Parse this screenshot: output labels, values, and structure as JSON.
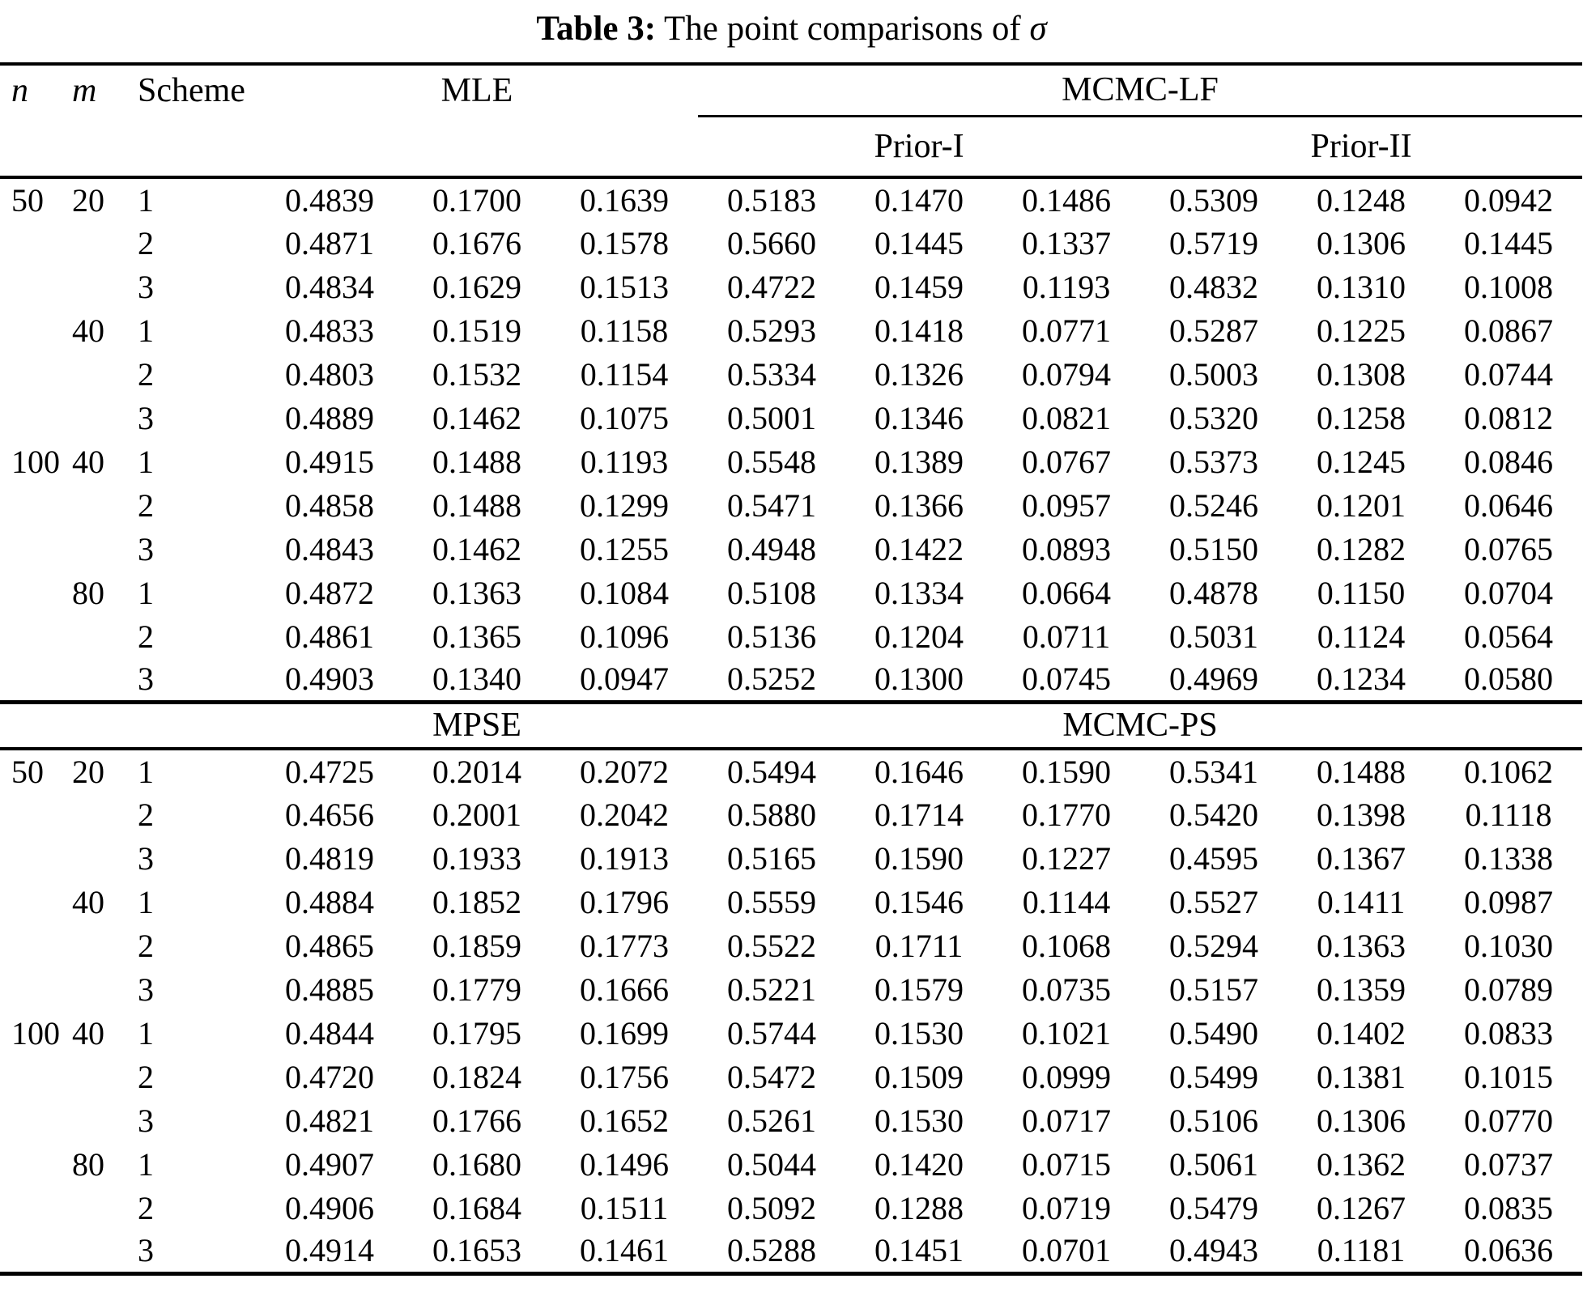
{
  "title": {
    "label": "Table 3:",
    "text": " The point comparisons of ",
    "symbol": "σ"
  },
  "colors": {
    "text": "#000000",
    "background": "#ffffff"
  },
  "header": {
    "col_n": "n",
    "col_m": "m",
    "col_scheme": "Scheme",
    "section1_left": "MLE",
    "section1_right": "MCMC-LF",
    "prior1": "Prior-I",
    "prior2": "Prior-II",
    "section2_left": "MPSE",
    "section2_right": "MCMC-PS"
  },
  "section1": {
    "rows": [
      {
        "n": "50",
        "m": "20",
        "scheme": "1",
        "values": [
          "0.4839",
          "0.1700",
          "0.1639",
          "0.5183",
          "0.1470",
          "0.1486",
          "0.5309",
          "0.1248",
          "0.0942"
        ]
      },
      {
        "n": "",
        "m": "",
        "scheme": "2",
        "values": [
          "0.4871",
          "0.1676",
          "0.1578",
          "0.5660",
          "0.1445",
          "0.1337",
          "0.5719",
          "0.1306",
          "0.1445"
        ]
      },
      {
        "n": "",
        "m": "",
        "scheme": "3",
        "values": [
          "0.4834",
          "0.1629",
          "0.1513",
          "0.4722",
          "0.1459",
          "0.1193",
          "0.4832",
          "0.1310",
          "0.1008"
        ]
      },
      {
        "n": "",
        "m": "40",
        "scheme": "1",
        "values": [
          "0.4833",
          "0.1519",
          "0.1158",
          "0.5293",
          "0.1418",
          "0.0771",
          "0.5287",
          "0.1225",
          "0.0867"
        ]
      },
      {
        "n": "",
        "m": "",
        "scheme": "2",
        "values": [
          "0.4803",
          "0.1532",
          "0.1154",
          "0.5334",
          "0.1326",
          "0.0794",
          "0.5003",
          "0.1308",
          "0.0744"
        ]
      },
      {
        "n": "",
        "m": "",
        "scheme": "3",
        "values": [
          "0.4889",
          "0.1462",
          "0.1075",
          "0.5001",
          "0.1346",
          "0.0821",
          "0.5320",
          "0.1258",
          "0.0812"
        ]
      },
      {
        "n": "100",
        "m": "40",
        "scheme": "1",
        "values": [
          "0.4915",
          "0.1488",
          "0.1193",
          "0.5548",
          "0.1389",
          "0.0767",
          "0.5373",
          "0.1245",
          "0.0846"
        ]
      },
      {
        "n": "",
        "m": "",
        "scheme": "2",
        "values": [
          "0.4858",
          "0.1488",
          "0.1299",
          "0.5471",
          "0.1366",
          "0.0957",
          "0.5246",
          "0.1201",
          "0.0646"
        ]
      },
      {
        "n": "",
        "m": "",
        "scheme": "3",
        "values": [
          "0.4843",
          "0.1462",
          "0.1255",
          "0.4948",
          "0.1422",
          "0.0893",
          "0.5150",
          "0.1282",
          "0.0765"
        ]
      },
      {
        "n": "",
        "m": "80",
        "scheme": "1",
        "values": [
          "0.4872",
          "0.1363",
          "0.1084",
          "0.5108",
          "0.1334",
          "0.0664",
          "0.4878",
          "0.1150",
          "0.0704"
        ]
      },
      {
        "n": "",
        "m": "",
        "scheme": "2",
        "values": [
          "0.4861",
          "0.1365",
          "0.1096",
          "0.5136",
          "0.1204",
          "0.0711",
          "0.5031",
          "0.1124",
          "0.0564"
        ]
      },
      {
        "n": "",
        "m": "",
        "scheme": "3",
        "values": [
          "0.4903",
          "0.1340",
          "0.0947",
          "0.5252",
          "0.1300",
          "0.0745",
          "0.4969",
          "0.1234",
          "0.0580"
        ]
      }
    ]
  },
  "section2": {
    "rows": [
      {
        "n": "50",
        "m": "20",
        "scheme": "1",
        "values": [
          "0.4725",
          "0.2014",
          "0.2072",
          "0.5494",
          "0.1646",
          "0.1590",
          "0.5341",
          "0.1488",
          "0.1062"
        ]
      },
      {
        "n": "",
        "m": "",
        "scheme": "2",
        "values": [
          "0.4656",
          "0.2001",
          "0.2042",
          "0.5880",
          "0.1714",
          "0.1770",
          "0.5420",
          "0.1398",
          "0.1118"
        ]
      },
      {
        "n": "",
        "m": "",
        "scheme": "3",
        "values": [
          "0.4819",
          "0.1933",
          "0.1913",
          "0.5165",
          "0.1590",
          "0.1227",
          "0.4595",
          "0.1367",
          "0.1338"
        ]
      },
      {
        "n": "",
        "m": "40",
        "scheme": "1",
        "values": [
          "0.4884",
          "0.1852",
          "0.1796",
          "0.5559",
          "0.1546",
          "0.1144",
          "0.5527",
          "0.1411",
          "0.0987"
        ]
      },
      {
        "n": "",
        "m": "",
        "scheme": "2",
        "values": [
          "0.4865",
          "0.1859",
          "0.1773",
          "0.5522",
          "0.1711",
          "0.1068",
          "0.5294",
          "0.1363",
          "0.1030"
        ]
      },
      {
        "n": "",
        "m": "",
        "scheme": "3",
        "values": [
          "0.4885",
          "0.1779",
          "0.1666",
          "0.5221",
          "0.1579",
          "0.0735",
          "0.5157",
          "0.1359",
          "0.0789"
        ]
      },
      {
        "n": "100",
        "m": "40",
        "scheme": "1",
        "values": [
          "0.4844",
          "0.1795",
          "0.1699",
          "0.5744",
          "0.1530",
          "0.1021",
          "0.5490",
          "0.1402",
          "0.0833"
        ]
      },
      {
        "n": "",
        "m": "",
        "scheme": "2",
        "values": [
          "0.4720",
          "0.1824",
          "0.1756",
          "0.5472",
          "0.1509",
          "0.0999",
          "0.5499",
          "0.1381",
          "0.1015"
        ]
      },
      {
        "n": "",
        "m": "",
        "scheme": "3",
        "values": [
          "0.4821",
          "0.1766",
          "0.1652",
          "0.5261",
          "0.1530",
          "0.0717",
          "0.5106",
          "0.1306",
          "0.0770"
        ]
      },
      {
        "n": "",
        "m": "80",
        "scheme": "1",
        "values": [
          "0.4907",
          "0.1680",
          "0.1496",
          "0.5044",
          "0.1420",
          "0.0715",
          "0.5061",
          "0.1362",
          "0.0737"
        ]
      },
      {
        "n": "",
        "m": "",
        "scheme": "2",
        "values": [
          "0.4906",
          "0.1684",
          "0.1511",
          "0.5092",
          "0.1288",
          "0.0719",
          "0.5479",
          "0.1267",
          "0.0835"
        ]
      },
      {
        "n": "",
        "m": "",
        "scheme": "3",
        "values": [
          "0.4914",
          "0.1653",
          "0.1461",
          "0.5288",
          "0.1451",
          "0.0701",
          "0.4943",
          "0.1181",
          "0.0636"
        ]
      }
    ]
  }
}
